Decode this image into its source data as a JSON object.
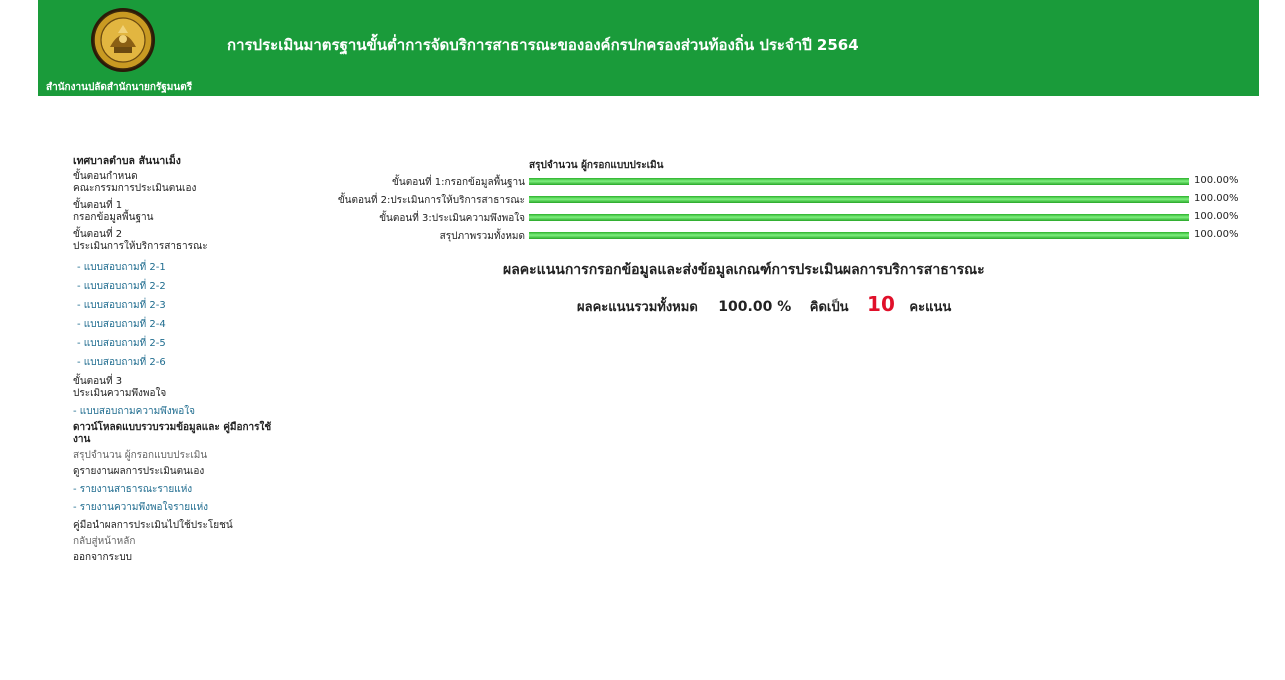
{
  "header": {
    "title": "การประเมินมาตรฐานขั้นต่ำการจัดบริการสาธารณะขององค์กรปกครองส่วนท้องถิ่น ประจำปี 2564",
    "org_name": "สำนักงานปลัดสำนักนายกรัฐมนตรี",
    "seal_icon": "government-seal-icon"
  },
  "sidebar": {
    "municipality": "เทศบาลตำบล สันนาเม็ง",
    "step0": {
      "line1": "ขั้นตอนกำหนด",
      "line2": "คณะกรรมการประเมินตนเอง"
    },
    "step1": {
      "line1": "ขั้นตอนที่ 1",
      "line2": "กรอกข้อมูลพื้นฐาน"
    },
    "step2": {
      "line1": "ขั้นตอนที่ 2",
      "line2": "ประเมินการให้บริการสาธารณะ"
    },
    "forms": [
      "- แบบสอบถามที่ 2-1",
      "- แบบสอบถามที่ 2-2",
      "- แบบสอบถามที่ 2-3",
      "- แบบสอบถามที่ 2-4",
      "- แบบสอบถามที่ 2-5",
      "- แบบสอบถามที่ 2-6"
    ],
    "step3": {
      "line1": "ขั้นตอนที่ 3",
      "line2": "ประเมินความพึงพอใจ"
    },
    "satisfaction_form": "- แบบสอบถามความพึงพอใจ",
    "download": {
      "line1": "ดาวน์โหลดแบบรวบรวมข้อมูลและ",
      "line2": "คู่มือการใช้งาน"
    },
    "summary_link": "สรุปจำนวน ผู้กรอกแบบประเมิน",
    "report_heading": "ดูรายงานผลการประเมินตนเอง",
    "report_public": "- รายงานสาธารณะรายแห่ง",
    "report_satisfaction": "- รายงานความพึงพอใจรายแห่ง",
    "manual": "คู่มือนำผลการประเมินไปใช้ประโยชน์",
    "home": "กลับสู่หน้าหลัก",
    "logout": "ออกจากระบบ"
  },
  "summary": {
    "title": "สรุปจำนวน ผู้กรอกแบบประเมิน",
    "bars": [
      {
        "label": "ขั้นตอนที่ 1:กรอกข้อมูลพื้นฐาน",
        "value": 100,
        "value_text": "100.00%"
      },
      {
        "label": "ขั้นตอนที่ 2:ประเมินการให้บริการสาธารณะ",
        "value": 100,
        "value_text": "100.00%"
      },
      {
        "label": "ขั้นตอนที่ 3:ประเมินความพึงพอใจ",
        "value": 100,
        "value_text": "100.00%"
      },
      {
        "label": "สรุปภาพรวมทั้งหมด",
        "value": 100,
        "value_text": "100.00%"
      }
    ]
  },
  "result": {
    "heading": "ผลคะแนนการกรอกข้อมูลและส่งข้อมูลเกณฑ์การประเมินผลการบริการสาธารณะ",
    "total_label": "ผลคะแนนรวมทั้งหมด",
    "percent": "100.00 %",
    "equals_label": "คิดเป็น",
    "score": "10",
    "unit": "คะแนน"
  },
  "colors": {
    "header_bg": "#1a9b3a",
    "bar_green": "#2cb12c",
    "score_red": "#e0102a",
    "link_blue": "#1f6c8f"
  }
}
